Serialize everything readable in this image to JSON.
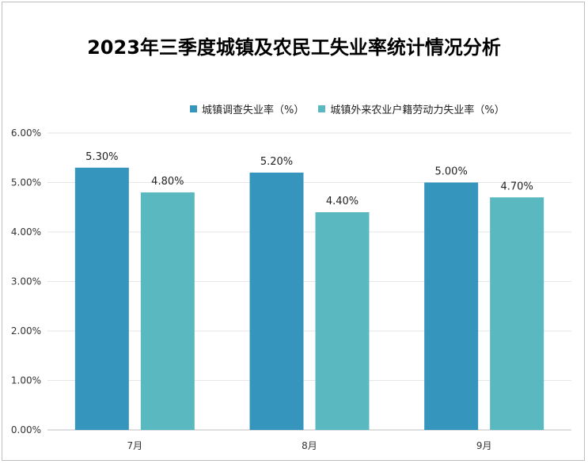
{
  "chart_data": {
    "type": "bar",
    "title": "2023年三季度城镇及农民工失业率统计情况分析",
    "categories": [
      "7月",
      "8月",
      "9月"
    ],
    "series": [
      {
        "name": "城镇调查失业率（%）",
        "values": [
          5.3,
          5.2,
          5.0
        ],
        "labels": [
          "5.30%",
          "5.20%",
          "5.00%"
        ],
        "color": "#3595bd"
      },
      {
        "name": "城镇外来农业户籍劳动力失业率（%）",
        "values": [
          4.8,
          4.4,
          4.7
        ],
        "labels": [
          "4.80%",
          "4.40%",
          "4.70%"
        ],
        "color": "#5ab8c0"
      }
    ],
    "y_ticks": [
      "0.00%",
      "1.00%",
      "2.00%",
      "3.00%",
      "4.00%",
      "5.00%",
      "6.00%"
    ],
    "ylim": [
      0,
      6
    ],
    "grid": true,
    "legend_position": "top"
  }
}
